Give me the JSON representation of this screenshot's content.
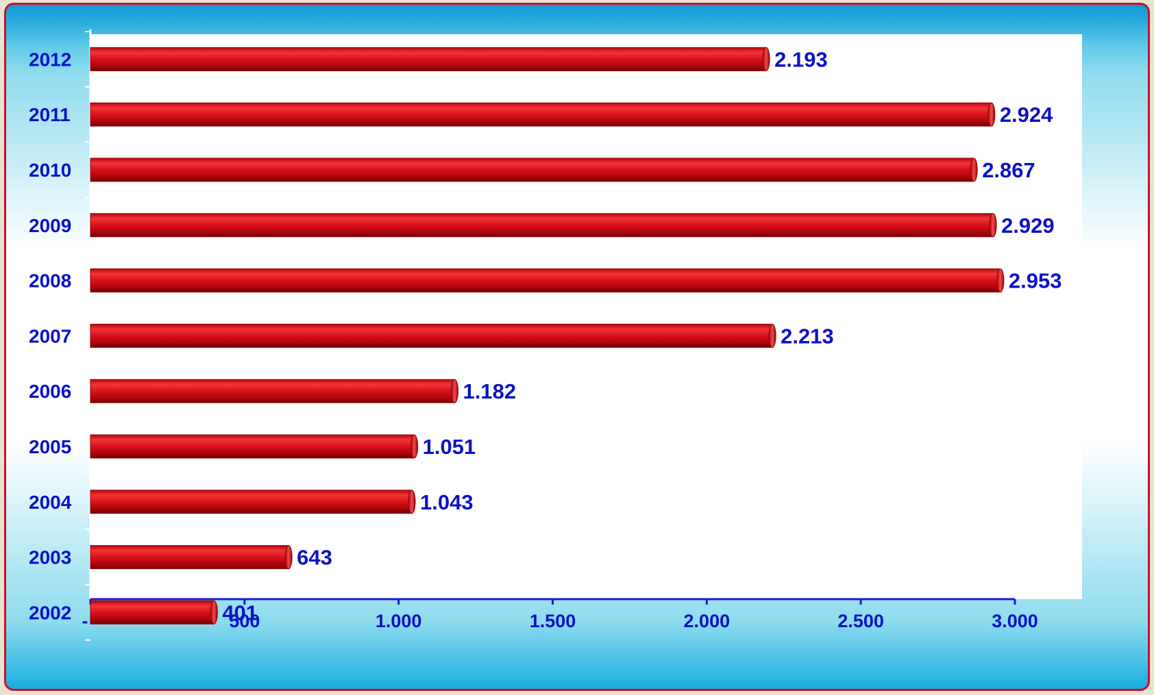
{
  "colors": {
    "bar": "#d9101c",
    "bar_dark": "#8e0006",
    "bar_light": "#f03a3a",
    "label": "#0a12c8",
    "axis": "#1a1ad0",
    "frame_border": "#c8102e"
  },
  "chart_data": {
    "type": "bar",
    "orientation": "horizontal",
    "categories": [
      "2012",
      "2011",
      "2010",
      "2009",
      "2008",
      "2007",
      "2006",
      "2005",
      "2004",
      "2003",
      "2002"
    ],
    "values": [
      2193,
      2924,
      2867,
      2929,
      2953,
      2213,
      1182,
      1051,
      1043,
      643,
      401
    ],
    "value_labels": [
      "2.193",
      "2.924",
      "2.867",
      "2.929",
      "2.953",
      "2.213",
      "1.182",
      "1.051",
      "1.043",
      "643",
      "401"
    ],
    "x_ticks": [
      0,
      500,
      1000,
      1500,
      2000,
      2500,
      3000
    ],
    "x_tick_labels": [
      "-",
      "500",
      "1.000",
      "1.500",
      "2.000",
      "2.500",
      "3.000"
    ],
    "xlim": [
      0,
      3000
    ],
    "title": "",
    "xlabel": "",
    "ylabel": "",
    "grid": false,
    "legend": "none"
  }
}
